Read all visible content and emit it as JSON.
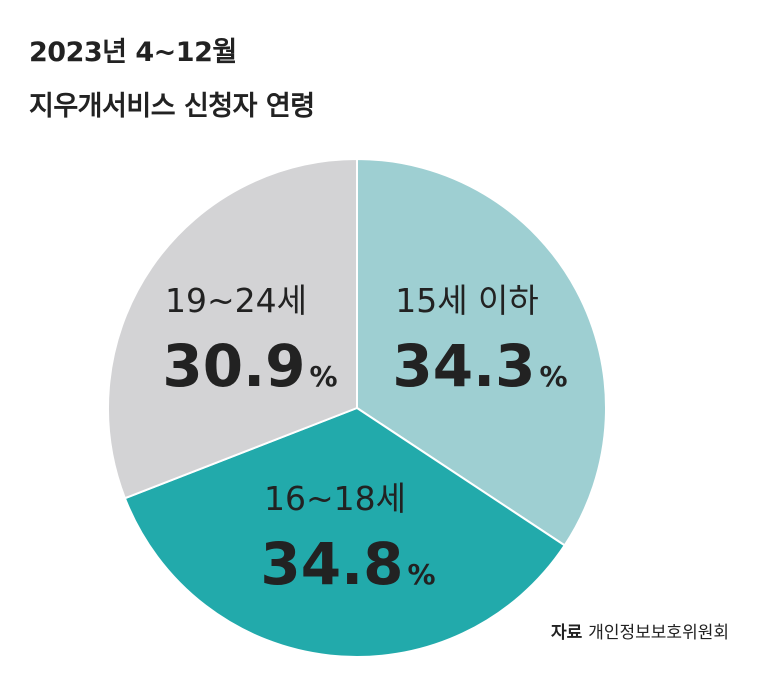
{
  "chart_data": {
    "type": "pie",
    "title_line1": "2023년 4~12월",
    "title_line2": "지우개서비스 신청자 연령",
    "slices": [
      {
        "label": "15세 이하",
        "value": 34.3,
        "display": "34.3",
        "color": "#9ecfd2"
      },
      {
        "label": "16~18세",
        "value": 34.8,
        "display": "34.8",
        "color": "#22aaab"
      },
      {
        "label": "19~24세",
        "value": 30.9,
        "display": "30.9",
        "color": "#d3d3d5"
      }
    ],
    "unit": "%"
  },
  "source": {
    "label": "자료",
    "text": "개인정보보호위원회"
  }
}
